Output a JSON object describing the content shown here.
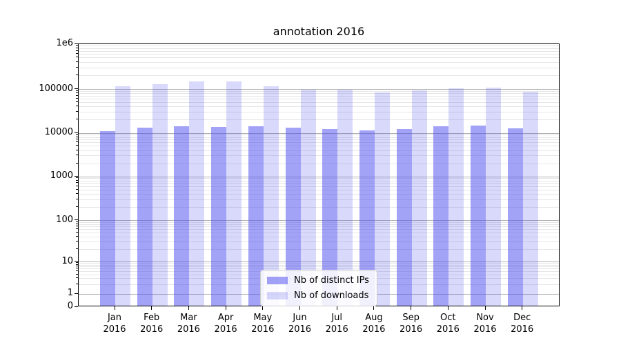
{
  "chart_data": {
    "type": "bar",
    "title": "annotation 2016",
    "categories": [
      "Jan 2016",
      "Feb 2016",
      "Mar 2016",
      "Apr 2016",
      "May 2016",
      "Jun 2016",
      "Jul 2016",
      "Aug 2016",
      "Sep 2016",
      "Oct 2016",
      "Nov 2016",
      "Dec 2016"
    ],
    "series": [
      {
        "name": "Nb of distinct IPs",
        "base_color": "#5050f0",
        "alpha": 0.53,
        "legend_color": "#a2a2f2",
        "values": [
          10300,
          12300,
          13400,
          12800,
          13200,
          12400,
          11400,
          10900,
          11600,
          13600,
          13800,
          12000
        ]
      },
      {
        "name": "Nb of downloads",
        "base_color": "#5050f0",
        "alpha": 0.22,
        "legend_color": "#d8d8f8",
        "values": [
          110000,
          122000,
          138000,
          140000,
          108000,
          91000,
          93000,
          80000,
          87000,
          100000,
          102000,
          83000
        ]
      }
    ],
    "yscale": "symlog",
    "ylim": [
      0,
      1000000
    ],
    "yticks": [
      {
        "label": "1e6",
        "value": 1000000
      },
      {
        "label": "100000",
        "value": 100000
      },
      {
        "label": "10000",
        "value": 10000
      },
      {
        "label": "1000",
        "value": 1000
      },
      {
        "label": "100",
        "value": 100
      },
      {
        "label": "10",
        "value": 10
      },
      {
        "label": "1",
        "value": 1
      },
      {
        "label": "0",
        "value": 0
      }
    ],
    "grid": "both",
    "legend_position": "lower center",
    "colors": {
      "major_grid": "#b0b0b0",
      "minor_grid": "#e6e6e6",
      "axis": "#000000",
      "text": "#000000",
      "legend_border": "#cccccc",
      "legend_bg": "#ffffff"
    }
  }
}
